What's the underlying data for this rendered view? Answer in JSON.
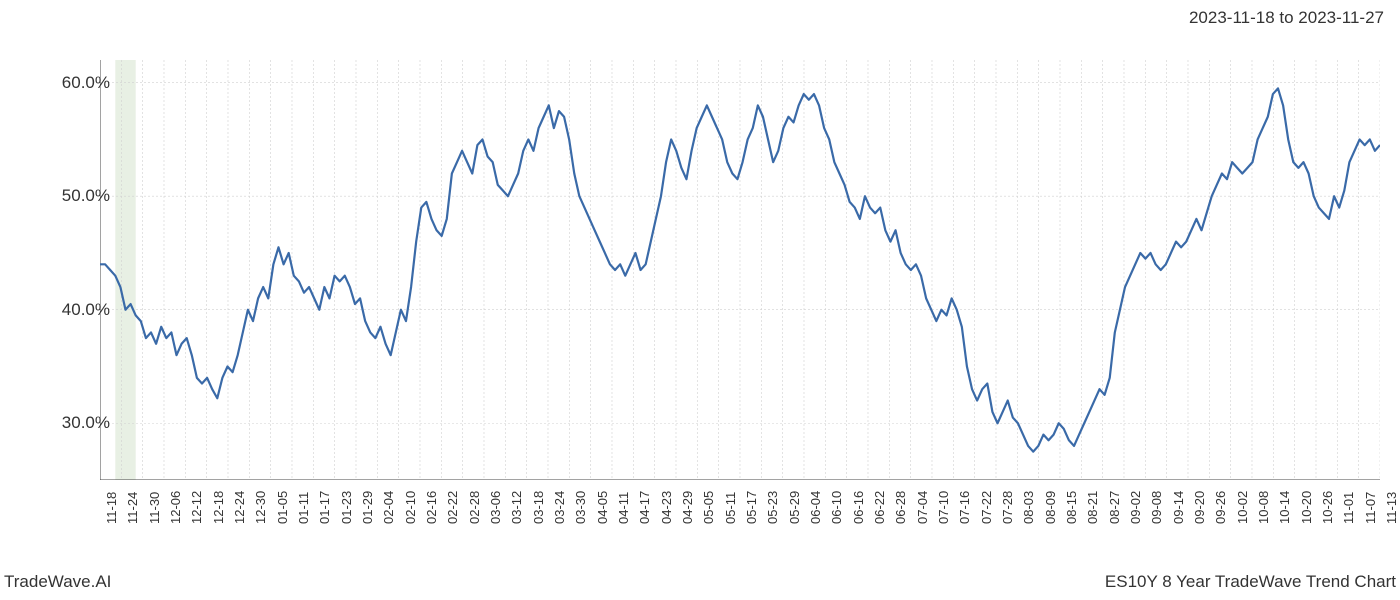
{
  "header": {
    "date_range": "2023-11-18 to 2023-11-27"
  },
  "footer": {
    "brand": "TradeWave.AI",
    "chart_title": "ES10Y 8 Year TradeWave Trend Chart"
  },
  "chart": {
    "type": "line",
    "background_color": "#ffffff",
    "line_color": "#3a6aa8",
    "line_width": 2.2,
    "grid_color": "#d0d0d0",
    "axis_color": "#444444",
    "highlight_band": {
      "fill_color": "#e8f0e4",
      "start_index": 3,
      "end_index": 7
    },
    "y_axis": {
      "min": 25,
      "max": 62,
      "ticks": [
        30,
        40,
        50,
        60
      ],
      "tick_labels": [
        "30.0%",
        "40.0%",
        "50.0%",
        "60.0%"
      ],
      "label_fontsize": 17
    },
    "x_axis": {
      "tick_labels": [
        "11-18",
        "11-24",
        "11-30",
        "12-06",
        "12-12",
        "12-18",
        "12-24",
        "12-30",
        "01-05",
        "01-11",
        "01-17",
        "01-23",
        "01-29",
        "02-04",
        "02-10",
        "02-16",
        "02-22",
        "02-28",
        "03-06",
        "03-12",
        "03-18",
        "03-24",
        "03-30",
        "04-05",
        "04-11",
        "04-17",
        "04-23",
        "04-29",
        "05-05",
        "05-11",
        "05-17",
        "05-23",
        "05-29",
        "06-04",
        "06-10",
        "06-16",
        "06-22",
        "06-28",
        "07-04",
        "07-10",
        "07-16",
        "07-22",
        "07-28",
        "08-03",
        "08-09",
        "08-15",
        "08-21",
        "08-27",
        "09-02",
        "09-08",
        "09-14",
        "09-20",
        "09-26",
        "10-02",
        "10-08",
        "10-14",
        "10-20",
        "10-26",
        "11-01",
        "11-07",
        "11-13"
      ],
      "label_fontsize": 13
    },
    "series": {
      "values": [
        44,
        44,
        43.5,
        43,
        42,
        40,
        40.5,
        39.5,
        39,
        37.5,
        38,
        37,
        38.5,
        37.5,
        38,
        36,
        37,
        37.5,
        36,
        34,
        33.5,
        34,
        33,
        32.2,
        34,
        35,
        34.5,
        36,
        38,
        40,
        39,
        41,
        42,
        41,
        44,
        45.5,
        44,
        45,
        43,
        42.5,
        41.5,
        42,
        41,
        40,
        42,
        41,
        43,
        42.5,
        43,
        42,
        40.5,
        41,
        39,
        38,
        37.5,
        38.5,
        37,
        36,
        38,
        40,
        39,
        42,
        46,
        49,
        49.5,
        48,
        47,
        46.5,
        48,
        52,
        53,
        54,
        53,
        52,
        54.5,
        55,
        53.5,
        53,
        51,
        50.5,
        50,
        51,
        52,
        54,
        55,
        54,
        56,
        57,
        58,
        56,
        57.5,
        57,
        55,
        52,
        50,
        49,
        48,
        47,
        46,
        45,
        44,
        43.5,
        44,
        43,
        44,
        45,
        43.5,
        44,
        46,
        48,
        50,
        53,
        55,
        54,
        52.5,
        51.5,
        54,
        56,
        57,
        58,
        57,
        56,
        55,
        53,
        52,
        51.5,
        53,
        55,
        56,
        58,
        57,
        55,
        53,
        54,
        56,
        57,
        56.5,
        58,
        59,
        58.5,
        59,
        58,
        56,
        55,
        53,
        52,
        51,
        49.5,
        49,
        48,
        50,
        49,
        48.5,
        49,
        47,
        46,
        47,
        45,
        44,
        43.5,
        44,
        43,
        41,
        40,
        39,
        40,
        39.5,
        41,
        40,
        38.5,
        35,
        33,
        32,
        33,
        33.5,
        31,
        30,
        31,
        32,
        30.5,
        30,
        29,
        28,
        27.5,
        28,
        29,
        28.5,
        29,
        30,
        29.5,
        28.5,
        28,
        29,
        30,
        31,
        32,
        33,
        32.5,
        34,
        38,
        40,
        42,
        43,
        44,
        45,
        44.5,
        45,
        44,
        43.5,
        44,
        45,
        46,
        45.5,
        46,
        47,
        48,
        47,
        48.5,
        50,
        51,
        52,
        51.5,
        53,
        52.5,
        52,
        52.5,
        53,
        55,
        56,
        57,
        59,
        59.5,
        58,
        55,
        53,
        52.5,
        53,
        52,
        50,
        49,
        48.5,
        48,
        50,
        49,
        50.5,
        53,
        54,
        55,
        54.5,
        55,
        54,
        54.5
      ]
    }
  }
}
